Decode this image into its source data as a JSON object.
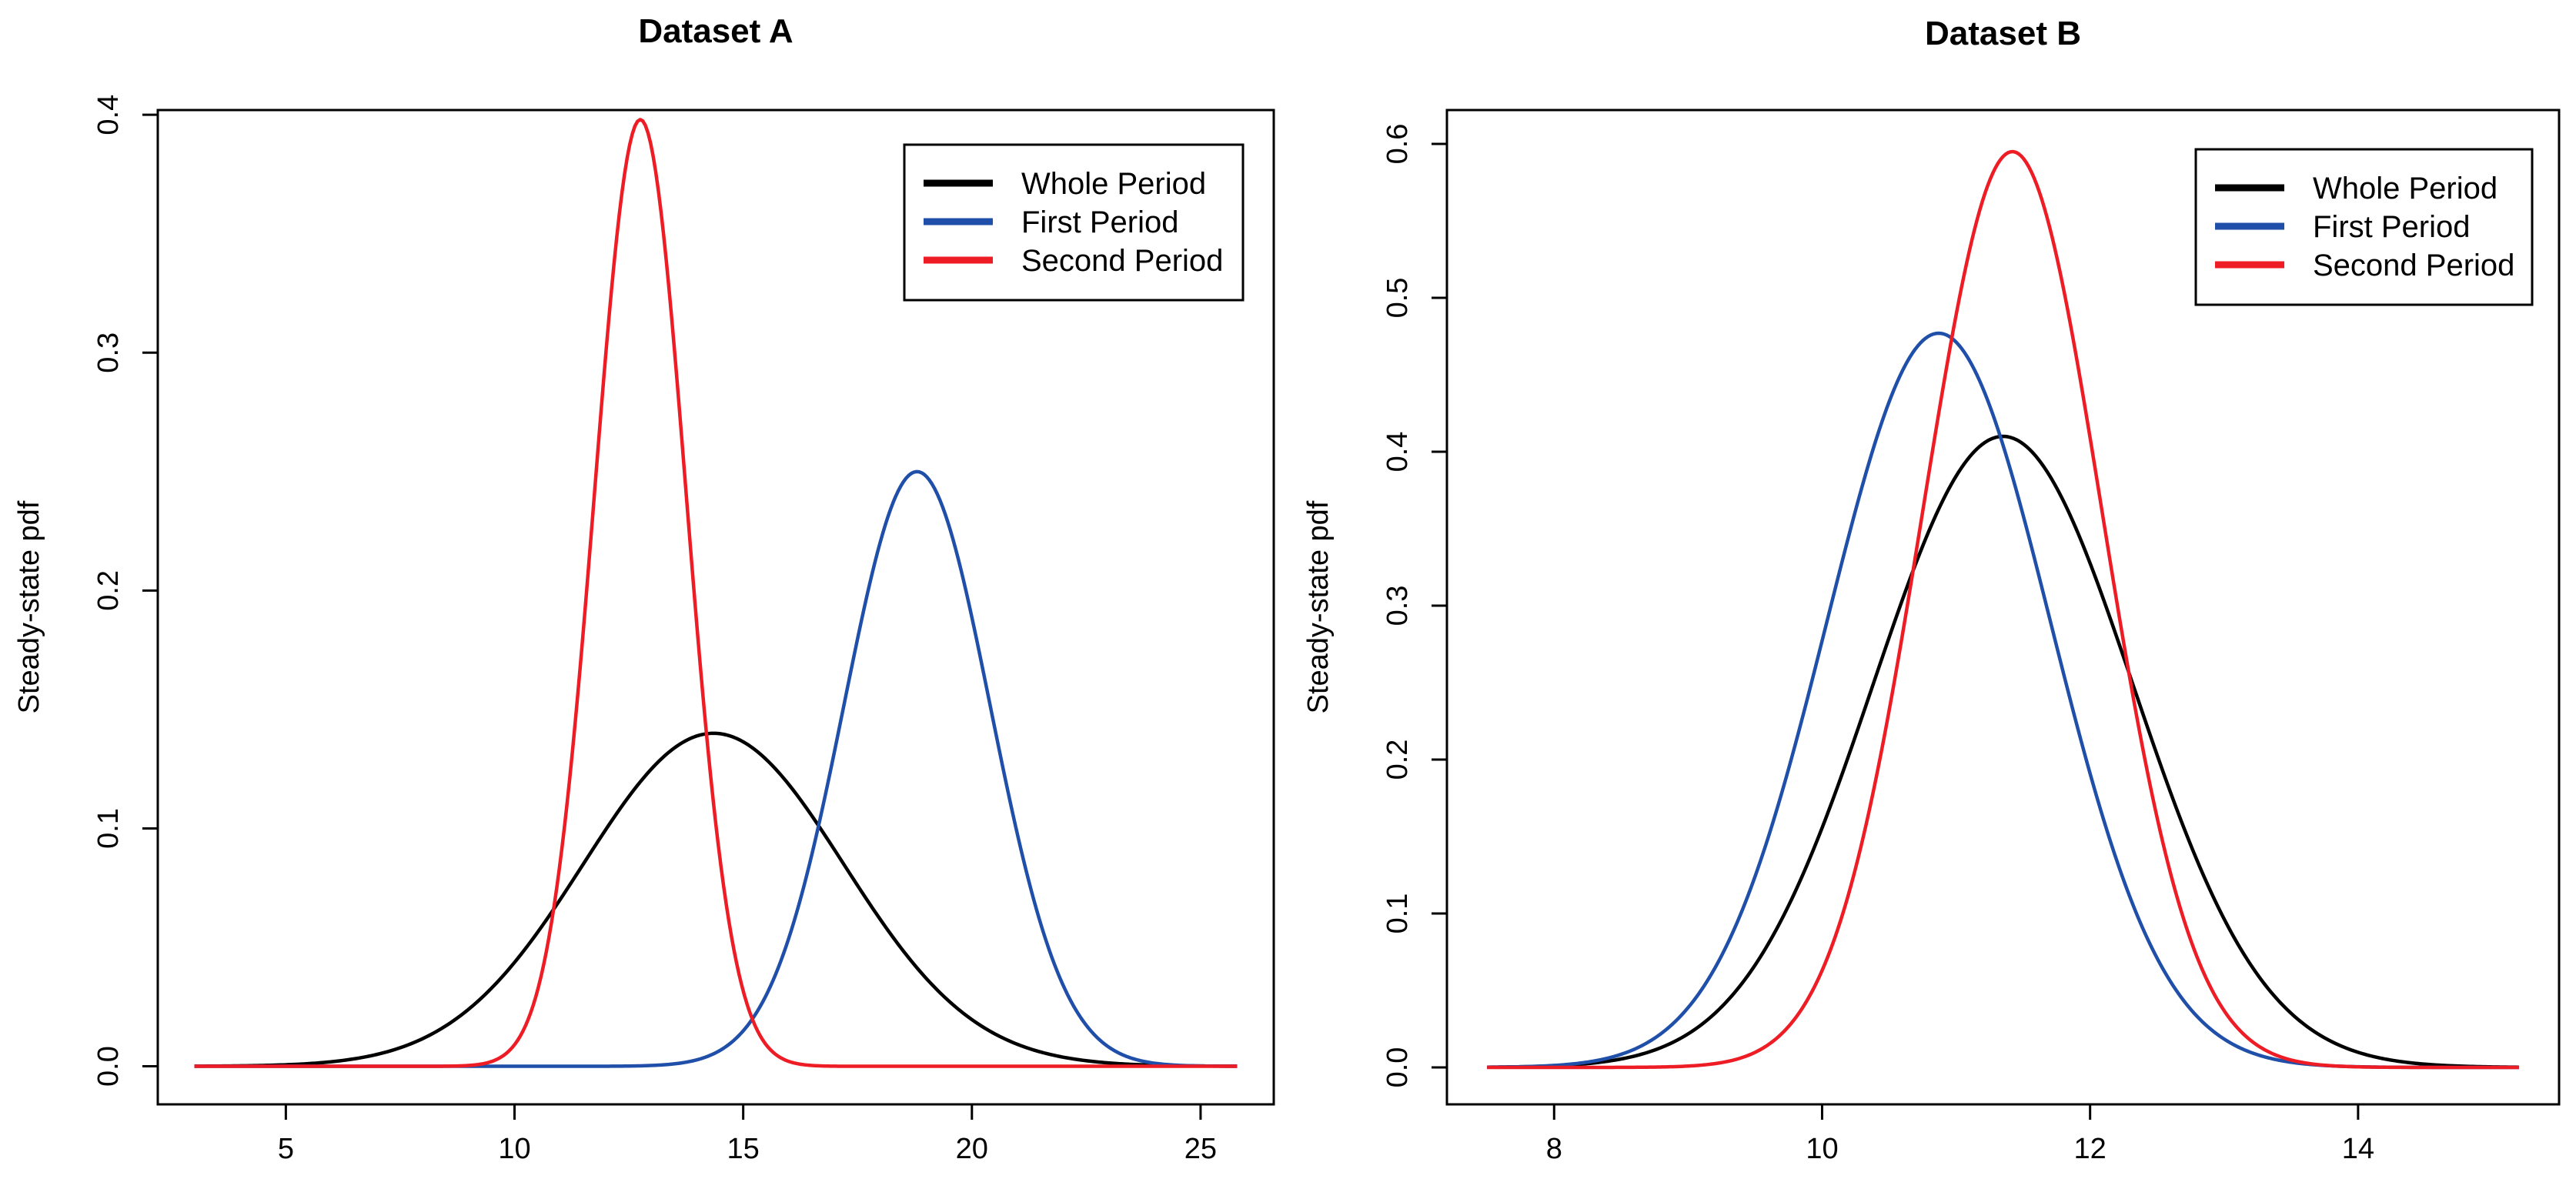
{
  "chart_data": [
    {
      "type": "line",
      "title": "Dataset A",
      "xlabel": "",
      "ylabel": "Steady-state pdf",
      "xlim": [
        2.2,
        26.6
      ],
      "ylim": [
        -0.016,
        0.402
      ],
      "xticks": [
        5,
        10,
        15,
        20,
        25
      ],
      "xtick_labels": [
        "5",
        "10",
        "15",
        "20",
        "25"
      ],
      "yticks": [
        0.0,
        0.1,
        0.2,
        0.3,
        0.4
      ],
      "ytick_labels": [
        "0.0",
        "0.1",
        "0.2",
        "0.3",
        "0.4"
      ],
      "grid": false,
      "legend": "top-right",
      "x_range": [
        3,
        25.8
      ],
      "series": [
        {
          "name": "Whole Period",
          "color": "#000000",
          "distribution": "normal",
          "mean": 14.35,
          "sd": 2.85,
          "peak": 0.14
        },
        {
          "name": "First Period",
          "color": "#1f4fa8",
          "distribution": "normal",
          "mean": 18.8,
          "sd": 1.6,
          "peak": 0.25
        },
        {
          "name": "Second Period",
          "color": "#ee1c24",
          "distribution": "normal",
          "mean": 12.75,
          "sd": 1.0,
          "peak": 0.398
        }
      ]
    },
    {
      "type": "line",
      "title": "Dataset B",
      "xlabel": "",
      "ylabel": "Steady-state pdf",
      "xlim": [
        7.2,
        15.5
      ],
      "ylim": [
        -0.024,
        0.622
      ],
      "xticks": [
        8,
        10,
        12,
        14
      ],
      "xtick_labels": [
        "8",
        "10",
        "12",
        "14"
      ],
      "yticks": [
        0.0,
        0.1,
        0.2,
        0.3,
        0.4,
        0.5,
        0.6
      ],
      "ytick_labels": [
        "0.0",
        "0.1",
        "0.2",
        "0.3",
        "0.4",
        "0.5",
        "0.6"
      ],
      "grid": false,
      "legend": "top-right",
      "x_range": [
        7.5,
        15.2
      ],
      "series": [
        {
          "name": "Whole Period",
          "color": "#000000",
          "distribution": "normal",
          "mean": 11.35,
          "sd": 0.97,
          "peak": 0.41
        },
        {
          "name": "First Period",
          "color": "#1f4fa8",
          "distribution": "normal",
          "mean": 10.87,
          "sd": 0.835,
          "peak": 0.477
        },
        {
          "name": "Second Period",
          "color": "#ee1c24",
          "distribution": "normal",
          "mean": 11.42,
          "sd": 0.67,
          "peak": 0.595
        }
      ]
    }
  ]
}
